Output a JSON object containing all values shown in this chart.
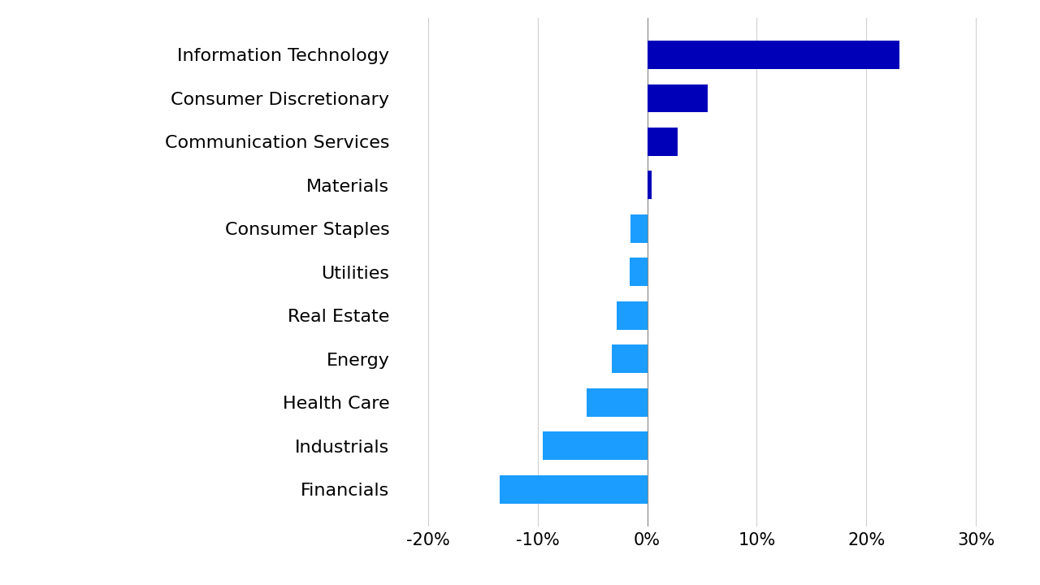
{
  "categories": [
    "Information Technology",
    "Consumer Discretionary",
    "Communication Services",
    "Materials",
    "Consumer Staples",
    "Utilities",
    "Real Estate",
    "Energy",
    "Health Care",
    "Industrials",
    "Financials"
  ],
  "values": [
    23.0,
    5.5,
    2.8,
    0.4,
    -1.5,
    -1.6,
    -2.8,
    -3.2,
    -5.5,
    -9.5,
    -13.5
  ],
  "bar_colors": [
    "#0000b8",
    "#0000b8",
    "#0000b8",
    "#0000b8",
    "#1a9dff",
    "#1a9dff",
    "#1a9dff",
    "#1a9dff",
    "#1a9dff",
    "#1a9dff",
    "#1a9dff"
  ],
  "xlim": [
    -23,
    33
  ],
  "xticks": [
    -20,
    -10,
    0,
    10,
    20,
    30
  ],
  "xtick_labels": [
    "-20%",
    "-10%",
    "0%",
    "10%",
    "20%",
    "30%"
  ],
  "label_fontsize": 16,
  "tick_fontsize": 15,
  "figsize": [
    12.8,
    7.2
  ],
  "dpi": 100,
  "background_color": "#ffffff",
  "bar_height": 0.65,
  "grid_color": "#d0d0d0",
  "zero_line_color": "#888888"
}
